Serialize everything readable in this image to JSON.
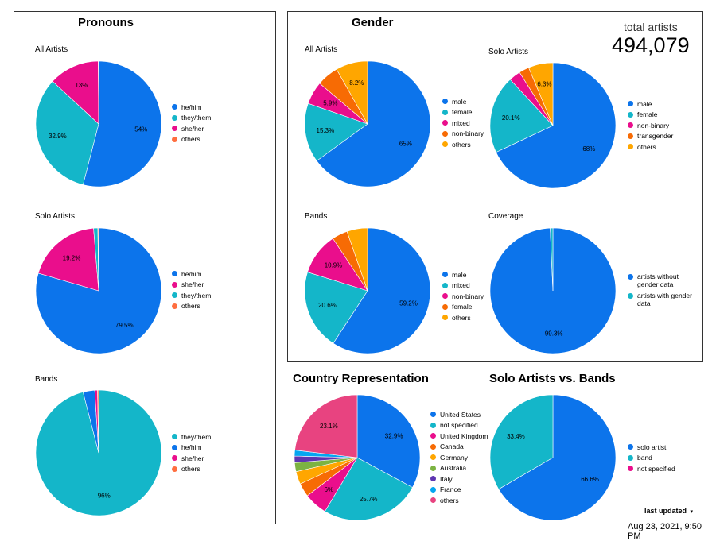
{
  "pronouns": {
    "title": "Pronouns"
  },
  "gender": {
    "title": "Gender"
  },
  "total": {
    "label": "total artists",
    "value": "494,079"
  },
  "footer": {
    "last_updated": "last updated",
    "date": "Aug 23, 2021, 9:50 PM"
  },
  "colors": {
    "blue": "#0c74eb",
    "teal": "#14b6c9",
    "pink": "#ea0e8c",
    "orange": "#f76b04",
    "amber": "#ffa600",
    "coral": "#ff6e40",
    "green": "#7cb342",
    "purple": "#5e35b1",
    "lightblue": "#05a6f0",
    "rose": "#e84380"
  },
  "chart_data": [
    {
      "id": "pron-all",
      "type": "pie",
      "title": "All Artists",
      "categories": [
        "he/him",
        "they/them",
        "she/her",
        "others"
      ],
      "values": [
        54,
        32.9,
        13,
        0.1
      ],
      "labels": [
        "54%",
        "32.9%",
        "13%",
        ""
      ],
      "colors": [
        "#0c74eb",
        "#14b6c9",
        "#ea0e8c",
        "#ff6e40"
      ]
    },
    {
      "id": "pron-solo",
      "type": "pie",
      "title": "Solo Artists",
      "categories": [
        "he/him",
        "she/her",
        "they/them",
        "others"
      ],
      "values": [
        79.5,
        19.2,
        1.1,
        0.2
      ],
      "labels": [
        "79.5%",
        "19.2%",
        "",
        ""
      ],
      "colors": [
        "#0c74eb",
        "#ea0e8c",
        "#14b6c9",
        "#ff6e40"
      ]
    },
    {
      "id": "pron-bands",
      "type": "pie",
      "title": "Bands",
      "categories": [
        "they/them",
        "he/him",
        "she/her",
        "others"
      ],
      "values": [
        96,
        3,
        0.7,
        0.3
      ],
      "labels": [
        "96%",
        "",
        "",
        ""
      ],
      "colors": [
        "#14b6c9",
        "#0c74eb",
        "#ea0e8c",
        "#ff6e40"
      ]
    },
    {
      "id": "gen-all",
      "type": "pie",
      "title": "All Artists",
      "categories": [
        "male",
        "female",
        "mixed",
        "non-binary",
        "others"
      ],
      "values": [
        65,
        15.3,
        5.9,
        5.6,
        8.2
      ],
      "labels": [
        "65%",
        "15.3%",
        "5.9%",
        "",
        "8.2%"
      ],
      "colors": [
        "#0c74eb",
        "#14b6c9",
        "#ea0e8c",
        "#f76b04",
        "#ffa600"
      ]
    },
    {
      "id": "gen-solo",
      "type": "pie",
      "title": "Solo Artists",
      "categories": [
        "male",
        "female",
        "non-binary",
        "transgender",
        "others"
      ],
      "values": [
        68,
        20.1,
        3,
        2.6,
        6.3
      ],
      "labels": [
        "68%",
        "20.1%",
        "",
        "",
        "6.3%"
      ],
      "colors": [
        "#0c74eb",
        "#14b6c9",
        "#ea0e8c",
        "#f76b04",
        "#ffa600"
      ]
    },
    {
      "id": "gen-bands",
      "type": "pie",
      "title": "Bands",
      "categories": [
        "male",
        "mixed",
        "non-binary",
        "female",
        "others"
      ],
      "values": [
        59.2,
        20.6,
        10.9,
        4,
        5.3
      ],
      "labels": [
        "59.2%",
        "20.6%",
        "10.9%",
        "",
        ""
      ],
      "colors": [
        "#0c74eb",
        "#14b6c9",
        "#ea0e8c",
        "#f76b04",
        "#ffa600"
      ]
    },
    {
      "id": "coverage",
      "type": "pie",
      "title": "Coverage",
      "categories": [
        "artists without gender data",
        "artists with gender data"
      ],
      "values": [
        99.3,
        0.7
      ],
      "labels": [
        "99.3%",
        ""
      ],
      "colors": [
        "#0c74eb",
        "#14b6c9"
      ]
    },
    {
      "id": "country",
      "type": "pie",
      "title": "Country Representation",
      "categories": [
        "United States",
        "not specified",
        "United Kingdom",
        "Canada",
        "Germany",
        "Australia",
        "Italy",
        "France",
        "others"
      ],
      "values": [
        32.9,
        25.7,
        6,
        3.5,
        3.3,
        2.3,
        1.7,
        1.5,
        23.1
      ],
      "labels": [
        "32.9%",
        "25.7%",
        "6%",
        "",
        "",
        "",
        "",
        "",
        "23.1%"
      ],
      "colors": [
        "#0c74eb",
        "#14b6c9",
        "#ea0e8c",
        "#f76b04",
        "#ffa600",
        "#7cb342",
        "#5e35b1",
        "#05a6f0",
        "#e84380"
      ]
    },
    {
      "id": "solo-bands",
      "type": "pie",
      "title": "Solo Artists vs. Bands",
      "categories": [
        "solo artist",
        "band",
        "not specified"
      ],
      "values": [
        66.6,
        33.4,
        0
      ],
      "labels": [
        "66.6%",
        "33.4%",
        ""
      ],
      "colors": [
        "#0c74eb",
        "#14b6c9",
        "#ea0e8c"
      ]
    }
  ]
}
